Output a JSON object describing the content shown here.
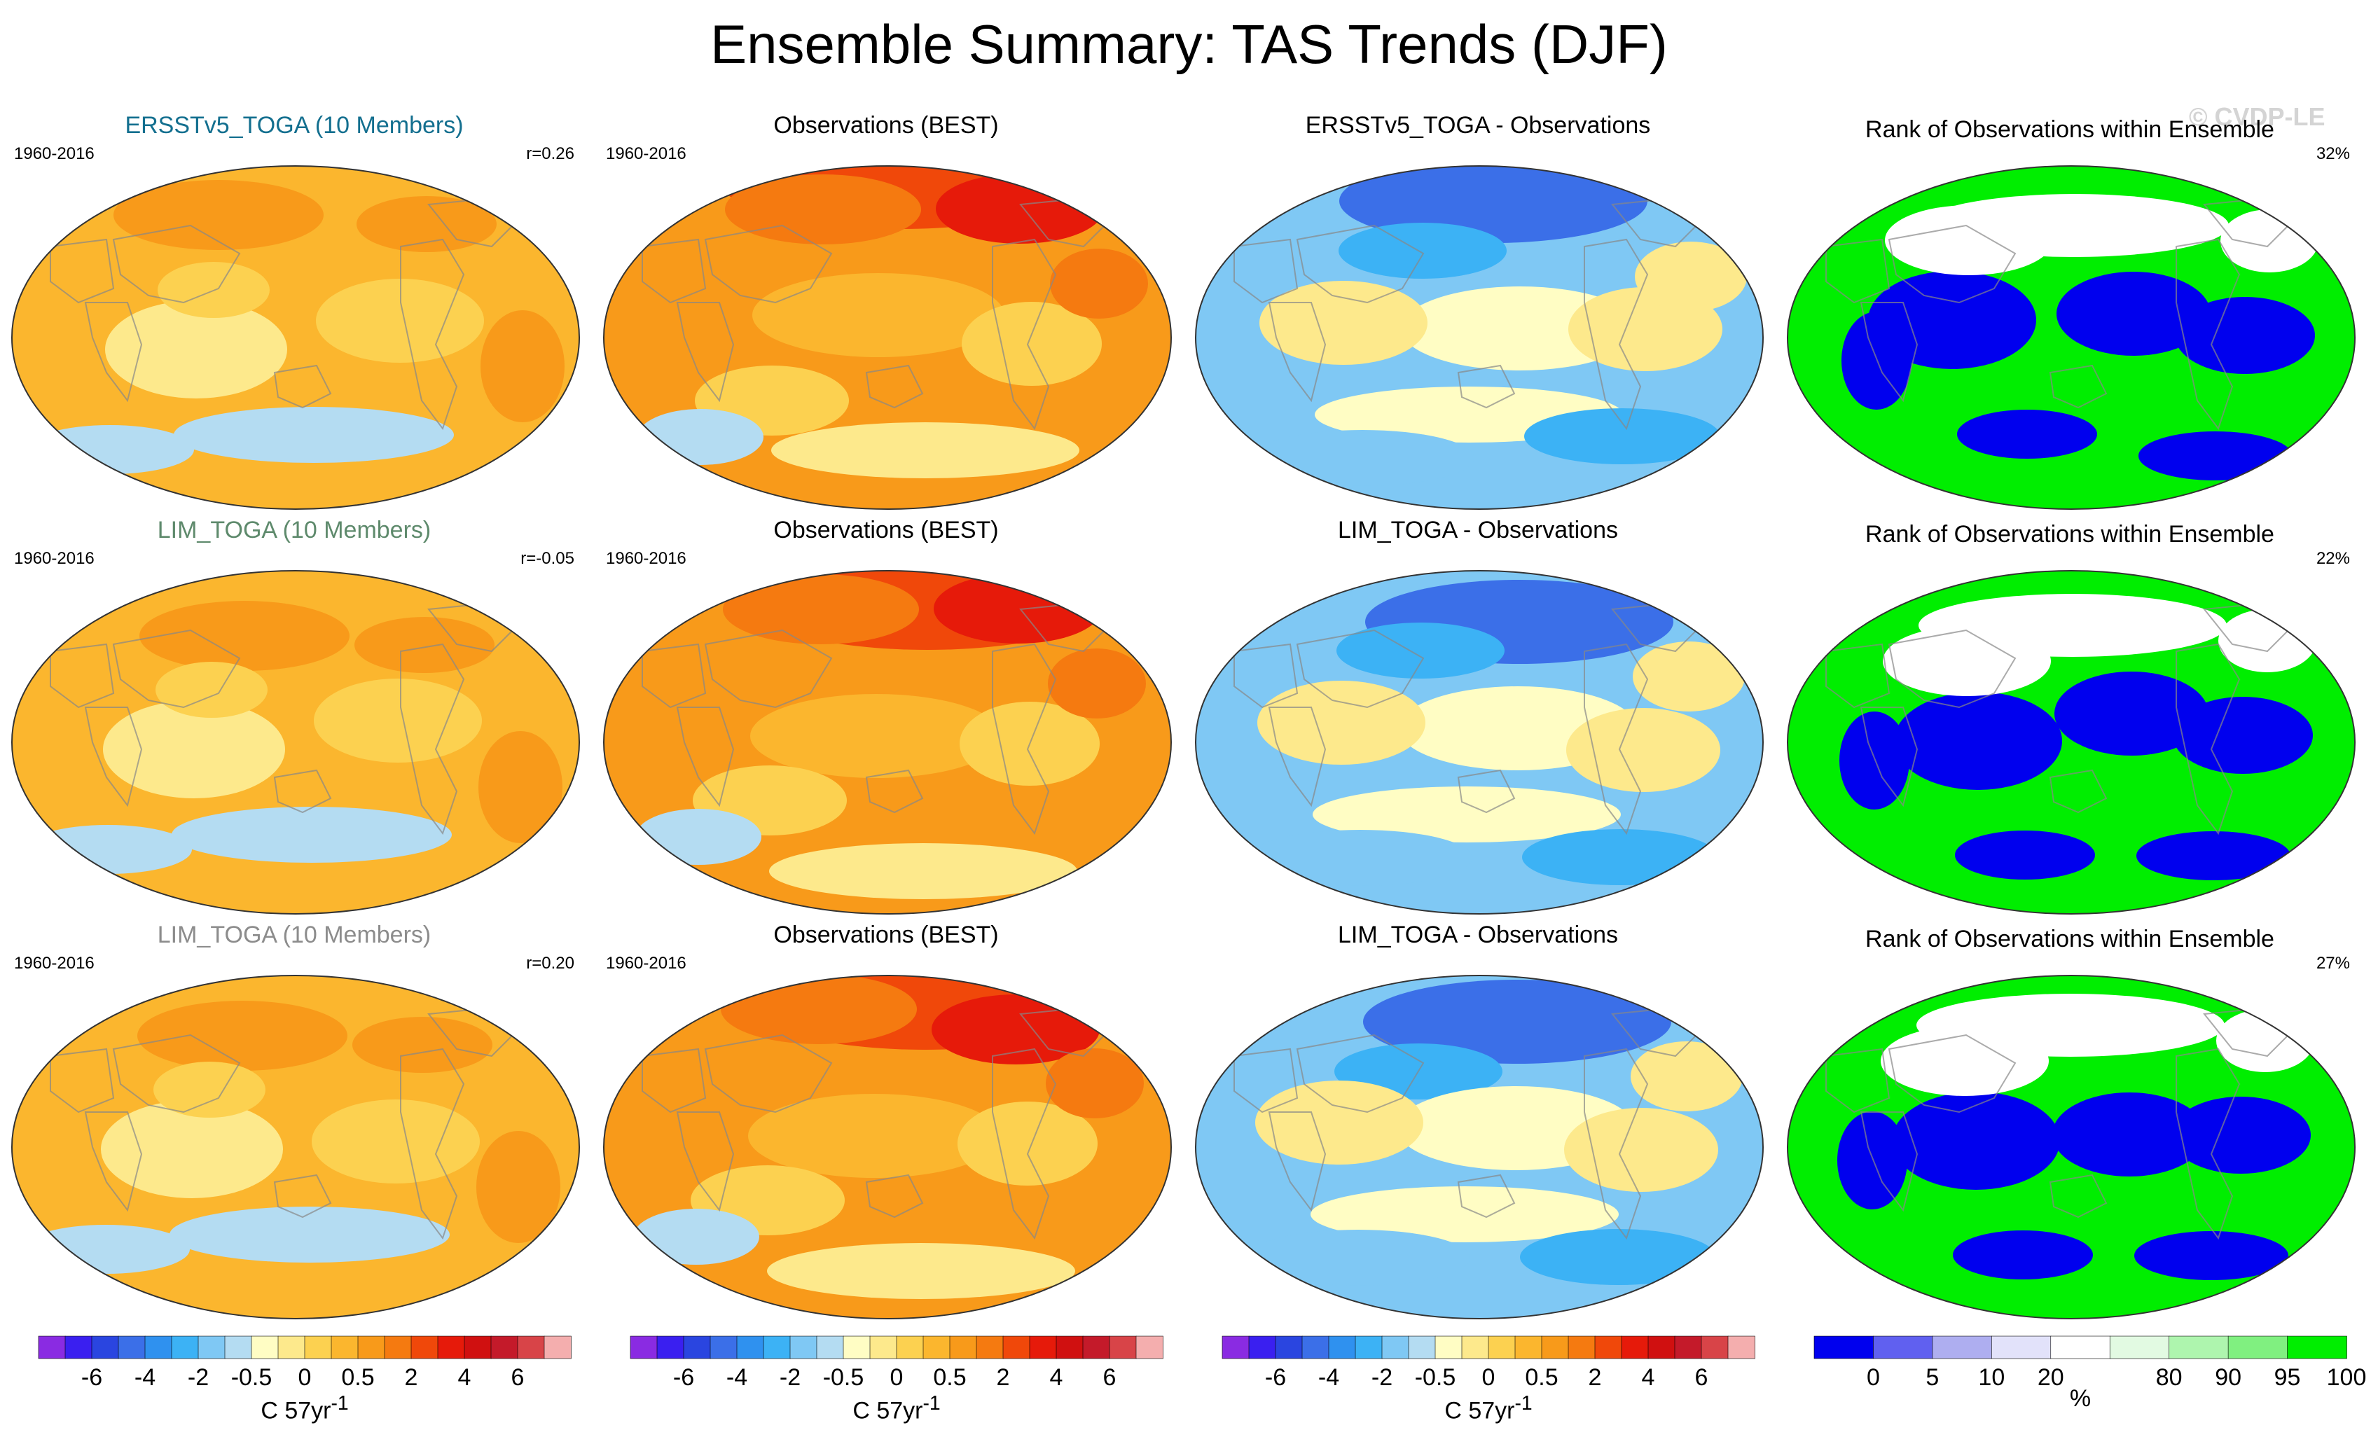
{
  "title": "Ensemble Summary: TAS Trends (DJF)",
  "watermark": "© CVDP-LE",
  "colors": {
    "rank_blue": "#0000ee",
    "rank_green": "#00ee00",
    "ocean_outline": "#888888"
  },
  "rows": [
    {
      "model": {
        "title": "ERSSTv5_TOGA (10 Members)",
        "title_color": "#136f8f",
        "period": "1960-2016",
        "corr": "r=0.26"
      },
      "obs": {
        "title": "Observations (BEST)",
        "period": "1960-2016"
      },
      "diff": {
        "title": "ERSSTv5_TOGA - Observations"
      },
      "rank": {
        "title": "Rank of Observations within Ensemble",
        "percent": "32%"
      }
    },
    {
      "model": {
        "title": "LIM_TOGA (10 Members)",
        "title_color": "#5e8a6c",
        "period": "1960-2016",
        "corr": "r=-0.05"
      },
      "obs": {
        "title": "Observations (BEST)",
        "period": "1960-2016"
      },
      "diff": {
        "title": "LIM_TOGA - Observations"
      },
      "rank": {
        "title": "Rank of Observations within Ensemble",
        "percent": "22%"
      }
    },
    {
      "model": {
        "title": "LIM_TOGA (10 Members)",
        "title_color": "#8c8c8c",
        "period": "1960-2016",
        "corr": "r=0.20"
      },
      "obs": {
        "title": "Observations (BEST)",
        "period": "1960-2016"
      },
      "diff": {
        "title": "LIM_TOGA - Observations"
      },
      "rank": {
        "title": "Rank of Observations within Ensemble",
        "percent": "27%"
      }
    }
  ],
  "trend_colorbar": {
    "colors": [
      "#8a2be2",
      "#3a1ff0",
      "#2a45e0",
      "#3b6fe8",
      "#2f91ef",
      "#3cb2f5",
      "#7fc8f4",
      "#b4dcf2",
      "#fffdc4",
      "#fde98c",
      "#fcd150",
      "#fbb62e",
      "#f89a1a",
      "#f57a10",
      "#f0480a",
      "#e61a0a",
      "#d01010",
      "#c41a2a",
      "#d84448",
      "#f4aeae"
    ],
    "ticks": [
      "-6",
      "-4",
      "-2",
      "-0.5",
      "0",
      "0.5",
      "2",
      "4",
      "6"
    ],
    "unit": "C 57yr",
    "unit_sup": "-1"
  },
  "rank_colorbar": {
    "colors": [
      "#0000ee",
      "#6060f0",
      "#aeaef0",
      "#e2e2fa",
      "#ffffff",
      "#e2fae2",
      "#aef5ae",
      "#80f080",
      "#00ee00"
    ],
    "ticks": [
      "0",
      "5",
      "10",
      "20",
      "80",
      "90",
      "95",
      "100"
    ],
    "unit": "%"
  }
}
